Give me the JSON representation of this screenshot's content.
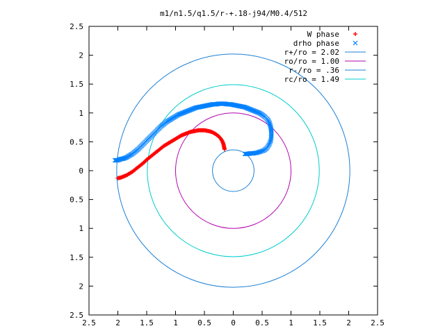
{
  "chart_data": {
    "type": "scatter",
    "title": "m1/n1.5/q1.5/r-+.18-j94/M0.4/512",
    "xlabel": "",
    "ylabel": "",
    "xlim": [
      -2.5,
      2.5
    ],
    "ylim": [
      -2.5,
      2.5
    ],
    "x_tick_values": [
      -2.5,
      -2,
      -1.5,
      -1,
      -0.5,
      0,
      0.5,
      1,
      1.5,
      2,
      2.5
    ],
    "x_tick_labels": [
      "2.5",
      "2",
      "1.5",
      "1",
      "0.5",
      "0",
      "0.5",
      "1",
      "1.5",
      "2",
      "2.5"
    ],
    "y_tick_values": [
      2.5,
      2,
      1.5,
      1,
      0.5,
      0,
      -0.5,
      -1,
      -1.5,
      -2,
      -2.5
    ],
    "y_tick_labels": [
      "2.5",
      "2",
      "1.5",
      "1",
      "0.5",
      "0",
      "0.5",
      "1",
      "1.5",
      "2",
      "2.5"
    ],
    "grid": false,
    "legend_position": "top-right",
    "series": [
      {
        "name": "W phase",
        "kind": "points",
        "marker": "plus",
        "color": "#ff0000",
        "points": [
          [
            -2.0,
            -0.13
          ],
          [
            -1.95,
            -0.12
          ],
          [
            -1.9,
            -0.1
          ],
          [
            -1.85,
            -0.08
          ],
          [
            -1.8,
            -0.05
          ],
          [
            -1.75,
            -0.02
          ],
          [
            -1.7,
            0.02
          ],
          [
            -1.65,
            0.06
          ],
          [
            -1.6,
            0.1
          ],
          [
            -1.55,
            0.14
          ],
          [
            -1.5,
            0.19
          ],
          [
            -1.45,
            0.23
          ],
          [
            -1.4,
            0.27
          ],
          [
            -1.35,
            0.31
          ],
          [
            -1.3,
            0.35
          ],
          [
            -1.25,
            0.39
          ],
          [
            -1.2,
            0.43
          ],
          [
            -1.15,
            0.46
          ],
          [
            -1.1,
            0.49
          ],
          [
            -1.05,
            0.52
          ],
          [
            -1.0,
            0.55
          ],
          [
            -0.95,
            0.58
          ],
          [
            -0.9,
            0.61
          ],
          [
            -0.85,
            0.63
          ],
          [
            -0.8,
            0.65
          ],
          [
            -0.75,
            0.67
          ],
          [
            -0.7,
            0.68
          ],
          [
            -0.65,
            0.69
          ],
          [
            -0.6,
            0.7
          ],
          [
            -0.55,
            0.7
          ],
          [
            -0.5,
            0.7
          ],
          [
            -0.45,
            0.69
          ],
          [
            -0.4,
            0.68
          ],
          [
            -0.35,
            0.66
          ],
          [
            -0.3,
            0.63
          ],
          [
            -0.26,
            0.6
          ],
          [
            -0.22,
            0.56
          ],
          [
            -0.19,
            0.51
          ],
          [
            -0.17,
            0.46
          ],
          [
            -0.16,
            0.41
          ],
          [
            -0.15,
            0.37
          ]
        ]
      },
      {
        "name": "drho phase",
        "kind": "points",
        "marker": "cross",
        "color": "#0080ff",
        "points": [
          [
            -2.05,
            0.18
          ],
          [
            -2.0,
            0.18
          ],
          [
            -1.95,
            0.2
          ],
          [
            -1.9,
            0.21
          ],
          [
            -1.85,
            0.23
          ],
          [
            -1.8,
            0.26
          ],
          [
            -1.75,
            0.29
          ],
          [
            -1.7,
            0.33
          ],
          [
            -1.65,
            0.37
          ],
          [
            -1.6,
            0.42
          ],
          [
            -1.55,
            0.47
          ],
          [
            -1.5,
            0.52
          ],
          [
            -1.45,
            0.57
          ],
          [
            -1.4,
            0.62
          ],
          [
            -1.35,
            0.67
          ],
          [
            -1.3,
            0.72
          ],
          [
            -1.25,
            0.77
          ],
          [
            -1.2,
            0.81
          ],
          [
            -1.15,
            0.85
          ],
          [
            -1.1,
            0.88
          ],
          [
            -1.05,
            0.91
          ],
          [
            -1.0,
            0.94
          ],
          [
            -0.95,
            0.97
          ],
          [
            -0.9,
            0.99
          ],
          [
            -0.85,
            1.01
          ],
          [
            -0.8,
            1.03
          ],
          [
            -0.75,
            1.05
          ],
          [
            -0.7,
            1.07
          ],
          [
            -0.65,
            1.09
          ],
          [
            -0.6,
            1.1
          ],
          [
            -0.55,
            1.11
          ],
          [
            -0.5,
            1.12
          ],
          [
            -0.45,
            1.13
          ],
          [
            -0.4,
            1.14
          ],
          [
            -0.35,
            1.15
          ],
          [
            -0.3,
            1.15
          ],
          [
            -0.25,
            1.16
          ],
          [
            -0.2,
            1.16
          ],
          [
            -0.15,
            1.16
          ],
          [
            -0.1,
            1.15
          ],
          [
            -0.05,
            1.15
          ],
          [
            0.0,
            1.14
          ],
          [
            0.05,
            1.13
          ],
          [
            0.1,
            1.12
          ],
          [
            0.15,
            1.11
          ],
          [
            0.2,
            1.1
          ],
          [
            0.25,
            1.08
          ],
          [
            0.3,
            1.06
          ],
          [
            0.35,
            1.04
          ],
          [
            0.4,
            1.02
          ],
          [
            0.45,
            1.0
          ],
          [
            0.5,
            0.97
          ],
          [
            0.55,
            0.93
          ],
          [
            0.6,
            0.88
          ],
          [
            0.63,
            0.82
          ],
          [
            0.65,
            0.75
          ],
          [
            0.66,
            0.68
          ],
          [
            0.66,
            0.6
          ],
          [
            0.65,
            0.52
          ],
          [
            0.62,
            0.45
          ],
          [
            0.58,
            0.39
          ],
          [
            0.53,
            0.35
          ],
          [
            0.47,
            0.33
          ],
          [
            0.41,
            0.31
          ],
          [
            0.35,
            0.3
          ],
          [
            0.3,
            0.3
          ],
          [
            0.25,
            0.29
          ],
          [
            0.2,
            0.29
          ]
        ]
      },
      {
        "name": "r+/ro = 2.02",
        "kind": "circle",
        "radius": 2.02,
        "color": "#1a7fd4"
      },
      {
        "name": "ro/ro = 1.00",
        "kind": "circle",
        "radius": 1.0,
        "color": "#b000b0"
      },
      {
        "name": "r-/ro = .36",
        "kind": "circle",
        "radius": 0.36,
        "color": "#1a7fd4"
      },
      {
        "name": "rc/ro = 1.49",
        "kind": "circle",
        "radius": 1.49,
        "color": "#00cccc"
      }
    ]
  }
}
